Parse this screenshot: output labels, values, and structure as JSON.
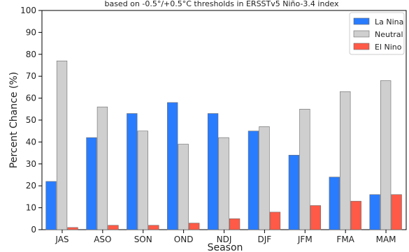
{
  "chart_data": {
    "type": "bar",
    "title": "based on -0.5°/+0.5°C thresholds in ERSSTv5 Niño-3.4 index",
    "xlabel": "Season",
    "ylabel": "Percent Chance (%)",
    "ylim": [
      0,
      100
    ],
    "yticks": [
      0,
      10,
      20,
      30,
      40,
      50,
      60,
      70,
      80,
      90,
      100
    ],
    "grid": false,
    "legend_position": "top-right",
    "categories": [
      "JAS",
      "ASO",
      "SON",
      "OND",
      "NDJ",
      "DJF",
      "JFM",
      "FMA",
      "MAM"
    ],
    "series": [
      {
        "name": "La Nina",
        "color": "#2a7cff",
        "values": [
          22,
          42,
          53,
          58,
          53,
          45,
          34,
          24,
          16
        ]
      },
      {
        "name": "Neutral",
        "color": "#cfcfcf",
        "values": [
          77,
          56,
          45,
          39,
          42,
          47,
          55,
          63,
          68
        ]
      },
      {
        "name": "El Nino",
        "color": "#ff5a47",
        "values": [
          1,
          2,
          2,
          3,
          5,
          8,
          11,
          13,
          16
        ]
      }
    ]
  }
}
